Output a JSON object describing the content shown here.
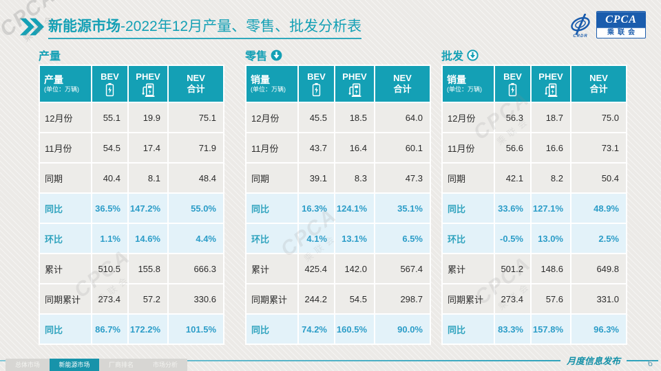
{
  "page": {
    "title_bold": "新能源市场",
    "title_rest": "-2022年12月产量、零售、批发分析表",
    "footer_label": "月度信息发布",
    "page_number": "6"
  },
  "brand": {
    "cpca": "CPCA",
    "name": "乘联会",
    "crdr": "CRDR",
    "logo_blue": "#1A5CAD"
  },
  "colors": {
    "teal_accent": "#14A0B5",
    "highlight_bg": "#E3F2F9",
    "highlight_text": "#2C9DC8"
  },
  "columns": {
    "unit": "(单位：万辆)",
    "bev": "BEV",
    "phev": "PHEV",
    "nev_line1": "NEV",
    "nev_line2": "合计"
  },
  "tables": [
    {
      "section": "产量",
      "arrow_icon": "none",
      "label_header": "产量",
      "rows": [
        {
          "label": "12月份",
          "values": [
            "55.1",
            "19.9",
            "75.1"
          ],
          "highlight": false
        },
        {
          "label": "11月份",
          "values": [
            "54.5",
            "17.4",
            "71.9"
          ],
          "highlight": false
        },
        {
          "label": "同期",
          "values": [
            "40.4",
            "8.1",
            "48.4"
          ],
          "highlight": false
        },
        {
          "label": "同比",
          "values": [
            "36.5%",
            "147.2%",
            "55.0%"
          ],
          "highlight": true
        },
        {
          "label": "环比",
          "values": [
            "1.1%",
            "14.6%",
            "4.4%"
          ],
          "highlight": true
        },
        {
          "label": "累计",
          "values": [
            "510.5",
            "155.8",
            "666.3"
          ],
          "highlight": false
        },
        {
          "label": "同期累计",
          "values": [
            "273.4",
            "57.2",
            "330.6"
          ],
          "highlight": false
        },
        {
          "label": "同比",
          "values": [
            "86.7%",
            "172.2%",
            "101.5%"
          ],
          "highlight": true
        }
      ]
    },
    {
      "section": "零售",
      "arrow_icon": "arrow-filled",
      "label_header": "销量",
      "rows": [
        {
          "label": "12月份",
          "values": [
            "45.5",
            "18.5",
            "64.0"
          ],
          "highlight": false
        },
        {
          "label": "11月份",
          "values": [
            "43.7",
            "16.4",
            "60.1"
          ],
          "highlight": false
        },
        {
          "label": "同期",
          "values": [
            "39.1",
            "8.3",
            "47.3"
          ],
          "highlight": false
        },
        {
          "label": "同比",
          "values": [
            "16.3%",
            "124.1%",
            "35.1%"
          ],
          "highlight": true
        },
        {
          "label": "环比",
          "values": [
            "4.1%",
            "13.1%",
            "6.5%"
          ],
          "highlight": true
        },
        {
          "label": "累计",
          "values": [
            "425.4",
            "142.0",
            "567.4"
          ],
          "highlight": false
        },
        {
          "label": "同期累计",
          "values": [
            "244.2",
            "54.5",
            "298.7"
          ],
          "highlight": false
        },
        {
          "label": "同比",
          "values": [
            "74.2%",
            "160.5%",
            "90.0%"
          ],
          "highlight": true
        }
      ]
    },
    {
      "section": "批发",
      "arrow_icon": "arrow-outline",
      "label_header": "销量",
      "rows": [
        {
          "label": "12月份",
          "values": [
            "56.3",
            "18.7",
            "75.0"
          ],
          "highlight": false
        },
        {
          "label": "11月份",
          "values": [
            "56.6",
            "16.6",
            "73.1"
          ],
          "highlight": false
        },
        {
          "label": "同期",
          "values": [
            "42.1",
            "8.2",
            "50.4"
          ],
          "highlight": false
        },
        {
          "label": "同比",
          "values": [
            "33.6%",
            "127.1%",
            "48.9%"
          ],
          "highlight": true
        },
        {
          "label": "环比",
          "values": [
            "-0.5%",
            "13.0%",
            "2.5%"
          ],
          "highlight": true
        },
        {
          "label": "累计",
          "values": [
            "501.2",
            "148.6",
            "649.8"
          ],
          "highlight": false
        },
        {
          "label": "同期累计",
          "values": [
            "273.4",
            "57.6",
            "331.0"
          ],
          "highlight": false
        },
        {
          "label": "同比",
          "values": [
            "83.3%",
            "157.8%",
            "96.3%"
          ],
          "highlight": true
        }
      ]
    }
  ],
  "tabs": [
    {
      "label": "总体市场",
      "active": false
    },
    {
      "label": "新能源市场",
      "active": true
    },
    {
      "label": "厂商排名",
      "active": false
    },
    {
      "label": "市场分析",
      "active": false
    }
  ]
}
